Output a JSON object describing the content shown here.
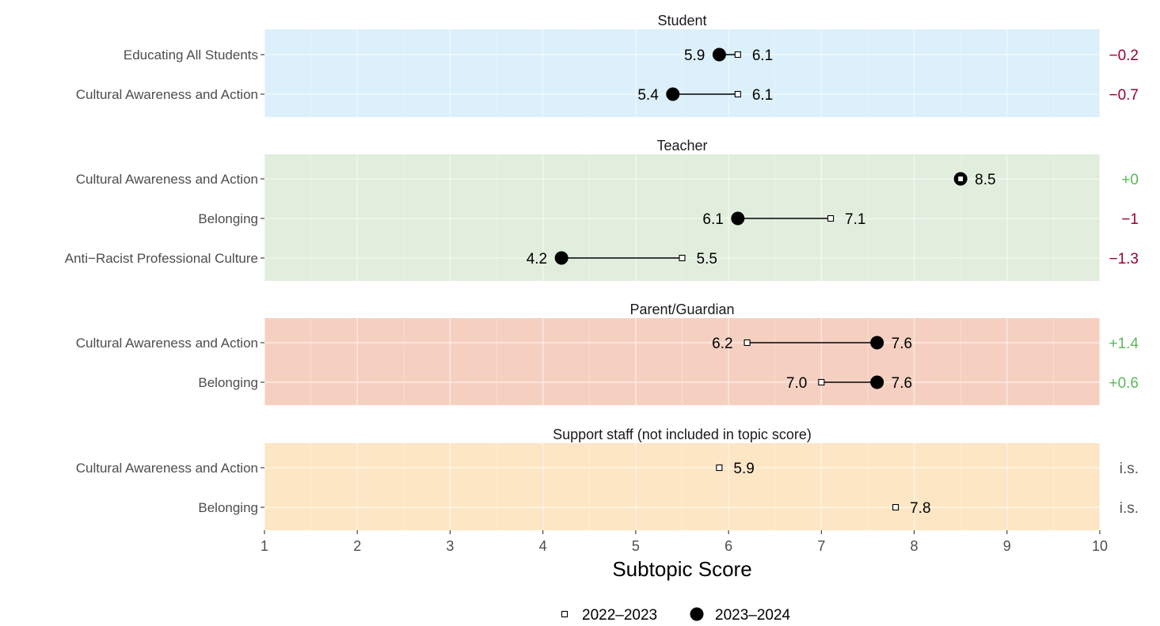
{
  "chart_data": {
    "type": "dumbbell",
    "xlabel": "Subtopic Score",
    "xlim": [
      1,
      10
    ],
    "x_ticks": [
      1,
      2,
      3,
      4,
      5,
      6,
      7,
      8,
      9,
      10
    ],
    "legend": {
      "placement": "bottom",
      "entries": [
        {
          "label": "2022–2023",
          "marker": "open-square"
        },
        {
          "label": "2023–2024",
          "marker": "filled-circle"
        }
      ]
    },
    "colors": {
      "positive": "#5cb85c",
      "negative": "#990033",
      "neutral": "#555555"
    },
    "panels": [
      {
        "title": "Student",
        "background": "#dbf0fa",
        "rows": [
          {
            "label": "Educating All Students",
            "prev": 6.1,
            "prev_label": "6.1",
            "curr": 5.9,
            "curr_label": "5.9",
            "change": "−0.2",
            "change_type": "negative"
          },
          {
            "label": "Cultural Awareness and Action",
            "prev": 6.1,
            "prev_label": "6.1",
            "curr": 5.4,
            "curr_label": "5.4",
            "change": "−0.7",
            "change_type": "negative"
          }
        ]
      },
      {
        "title": "Teacher",
        "background": "#e1eedd",
        "rows": [
          {
            "label": "Cultural Awareness and Action",
            "prev": 8.5,
            "prev_label": "",
            "curr": 8.5,
            "curr_label": "8.5",
            "change": "+0",
            "change_type": "positive"
          },
          {
            "label": "Belonging",
            "prev": 7.1,
            "prev_label": "7.1",
            "curr": 6.1,
            "curr_label": "6.1",
            "change": "−1",
            "change_type": "negative"
          },
          {
            "label": "Anti−Racist Professional Culture",
            "prev": 5.5,
            "prev_label": "5.5",
            "curr": 4.2,
            "curr_label": "4.2",
            "change": "−1.3",
            "change_type": "negative"
          }
        ]
      },
      {
        "title": "Parent/Guardian",
        "background": "#f5d0c1",
        "rows": [
          {
            "label": "Cultural Awareness and Action",
            "prev": 6.2,
            "prev_label": "6.2",
            "curr": 7.6,
            "curr_label": "7.6",
            "change": "+1.4",
            "change_type": "positive"
          },
          {
            "label": "Belonging",
            "prev": 7.0,
            "prev_label": "7.0",
            "curr": 7.6,
            "curr_label": "7.6",
            "change": "+0.6",
            "change_type": "positive"
          }
        ]
      },
      {
        "title": "Support staff (not included in topic score)",
        "background": "#fde6c4",
        "rows": [
          {
            "label": "Cultural Awareness and Action",
            "prev": 5.9,
            "prev_label": "5.9",
            "curr": null,
            "curr_label": "",
            "change": "i.s.",
            "change_type": "neutral"
          },
          {
            "label": "Belonging",
            "prev": 7.8,
            "prev_label": "7.8",
            "curr": null,
            "curr_label": "",
            "change": "i.s.",
            "change_type": "neutral"
          }
        ]
      }
    ]
  }
}
